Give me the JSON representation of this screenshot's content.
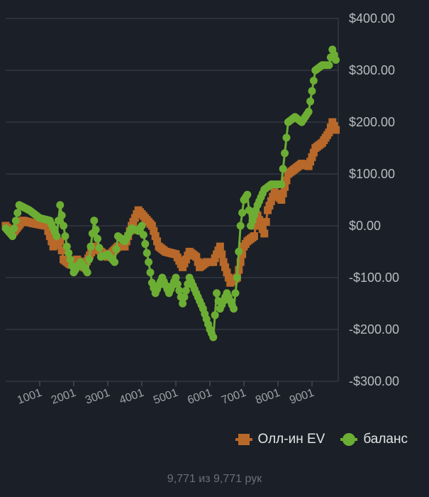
{
  "chart_data": {
    "type": "line",
    "x_ticks": [
      1001,
      2001,
      3001,
      4001,
      5001,
      6001,
      7001,
      8001,
      9001
    ],
    "x_tick_labels": [
      "1001",
      "2001",
      "3001",
      "4001",
      "5001",
      "6001",
      "7001",
      "8001",
      "9001"
    ],
    "xlim": [
      1,
      9771
    ],
    "ylim": [
      -300,
      400
    ],
    "y_ticks": [
      400,
      300,
      200,
      100,
      0,
      -100,
      -200,
      -300
    ],
    "y_tick_labels": [
      "$400.00",
      "$300.00",
      "$200.00",
      "$100.00",
      "$0.00",
      "-$100.00",
      "-$200.00",
      "-$300.00"
    ],
    "grid": "horizontal",
    "legend_position": "bottom-right",
    "series": [
      {
        "name": "Олл-ин EV",
        "color": "#b8692a",
        "marker": "square",
        "points": [
          [
            1,
            0
          ],
          [
            200,
            -15
          ],
          [
            500,
            10
          ],
          [
            800,
            5
          ],
          [
            1200,
            0
          ],
          [
            1400,
            -40
          ],
          [
            1600,
            -30
          ],
          [
            1700,
            -65
          ],
          [
            1900,
            -75
          ],
          [
            2100,
            -65
          ],
          [
            2300,
            -80
          ],
          [
            2600,
            -40
          ],
          [
            2800,
            -50
          ],
          [
            3000,
            -60
          ],
          [
            3300,
            -40
          ],
          [
            3500,
            -40
          ],
          [
            3700,
            0
          ],
          [
            3900,
            30
          ],
          [
            4100,
            15
          ],
          [
            4300,
            0
          ],
          [
            4500,
            -40
          ],
          [
            4700,
            -50
          ],
          [
            5000,
            -55
          ],
          [
            5200,
            -80
          ],
          [
            5400,
            -50
          ],
          [
            5600,
            -60
          ],
          [
            5700,
            -80
          ],
          [
            5900,
            -70
          ],
          [
            6100,
            -70
          ],
          [
            6300,
            -40
          ],
          [
            6400,
            -70
          ],
          [
            6500,
            -90
          ],
          [
            6600,
            -110
          ],
          [
            6800,
            -100
          ],
          [
            7000,
            -40
          ],
          [
            7100,
            -30
          ],
          [
            7300,
            -20
          ],
          [
            7400,
            20
          ],
          [
            7600,
            -15
          ],
          [
            7700,
            30
          ],
          [
            7900,
            65
          ],
          [
            8100,
            50
          ],
          [
            8300,
            100
          ],
          [
            8500,
            110
          ],
          [
            8700,
            120
          ],
          [
            8900,
            115
          ],
          [
            9100,
            150
          ],
          [
            9300,
            160
          ],
          [
            9500,
            180
          ],
          [
            9600,
            200
          ],
          [
            9700,
            185
          ]
        ]
      },
      {
        "name": "баланс",
        "color": "#6cae34",
        "marker": "circle",
        "points": [
          [
            1,
            -5
          ],
          [
            200,
            -20
          ],
          [
            400,
            40
          ],
          [
            700,
            30
          ],
          [
            1000,
            15
          ],
          [
            1300,
            10
          ],
          [
            1500,
            -20
          ],
          [
            1600,
            40
          ],
          [
            1800,
            -40
          ],
          [
            2000,
            -90
          ],
          [
            2200,
            -70
          ],
          [
            2400,
            -90
          ],
          [
            2600,
            10
          ],
          [
            2800,
            -60
          ],
          [
            3000,
            -55
          ],
          [
            3200,
            -70
          ],
          [
            3300,
            -20
          ],
          [
            3500,
            -30
          ],
          [
            3700,
            -5
          ],
          [
            3900,
            -10
          ],
          [
            4000,
            0
          ],
          [
            4200,
            -70
          ],
          [
            4300,
            -110
          ],
          [
            4400,
            -130
          ],
          [
            4600,
            -100
          ],
          [
            4800,
            -130
          ],
          [
            5000,
            -100
          ],
          [
            5200,
            -150
          ],
          [
            5400,
            -100
          ],
          [
            5600,
            -130
          ],
          [
            5800,
            -160
          ],
          [
            6000,
            -200
          ],
          [
            6100,
            -215
          ],
          [
            6200,
            -130
          ],
          [
            6300,
            -160
          ],
          [
            6500,
            -130
          ],
          [
            6700,
            -160
          ],
          [
            6800,
            -100
          ],
          [
            6900,
            0
          ],
          [
            7000,
            50
          ],
          [
            7100,
            60
          ],
          [
            7200,
            0
          ],
          [
            7400,
            40
          ],
          [
            7600,
            70
          ],
          [
            7800,
            80
          ],
          [
            8000,
            80
          ],
          [
            8100,
            80
          ],
          [
            8300,
            200
          ],
          [
            8500,
            210
          ],
          [
            8700,
            200
          ],
          [
            8900,
            220
          ],
          [
            9100,
            300
          ],
          [
            9300,
            310
          ],
          [
            9500,
            310
          ],
          [
            9600,
            340
          ],
          [
            9700,
            320
          ]
        ]
      }
    ]
  },
  "footer": {
    "hands_count": "9,771 из 9,771 рук"
  }
}
